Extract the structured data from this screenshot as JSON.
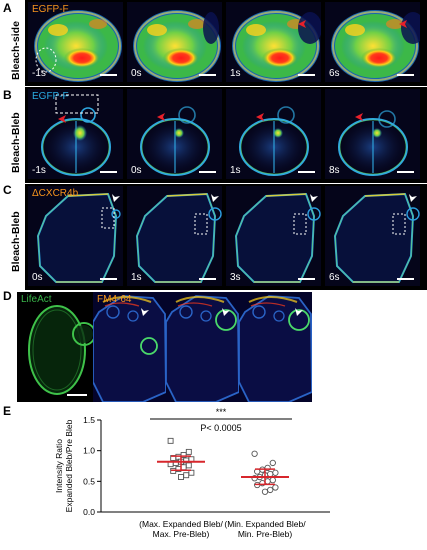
{
  "panel_letters": {
    "a": "A",
    "b": "B",
    "c": "C",
    "d": "D",
    "e": "E"
  },
  "row_labels": {
    "a": "Bleach-side",
    "b": "Bleach-Bleb",
    "c": "Bleach-Bleb"
  },
  "channel_labels": {
    "a": "EGFP-F",
    "b": "EGFP-F",
    "c": "ΔCXCR4b",
    "d_left": "LifeAct",
    "d_right": "FM4-64"
  },
  "colors": {
    "egfp_a": "#f7941d",
    "egfp_b": "#29abe2",
    "cxcr": "#f7941d",
    "lifeact": "#39b54a",
    "fm464": "#f7941d",
    "arrow_red": "#e8202a",
    "median_red": "#d7262c"
  },
  "timepoints": {
    "a": [
      "-1s",
      "0s",
      "1s",
      "6s"
    ],
    "b": [
      "-1s",
      "0s",
      "1s",
      "8s"
    ],
    "c": [
      "0s",
      "1s",
      "3s",
      "6s"
    ]
  },
  "chart_data": {
    "type": "scatter",
    "ylabel": "Intensity Ratio\nExpanded Bleb/Pre Bleb",
    "ylim": [
      0,
      1.5
    ],
    "yticks": [
      "0.0",
      "0.5",
      "1.0",
      "1.5"
    ],
    "categories": [
      "(Max. Expanded Bleb/\nMax. Pre-Bleb)",
      "(Min. Expanded Bleb/\nMin. Pre-Bleb)"
    ],
    "series": [
      {
        "marker": "square",
        "values": [
          1.16,
          0.98,
          0.93,
          0.9,
          0.88,
          0.86,
          0.84,
          0.82,
          0.8,
          0.78,
          0.76,
          0.73,
          0.7,
          0.67,
          0.64,
          0.6,
          0.57
        ],
        "median": 0.82,
        "iqr": [
          0.68,
          0.91
        ]
      },
      {
        "marker": "circle",
        "values": [
          0.95,
          0.8,
          0.72,
          0.69,
          0.66,
          0.64,
          0.62,
          0.6,
          0.57,
          0.55,
          0.52,
          0.5,
          0.47,
          0.44,
          0.4,
          0.36,
          0.33
        ],
        "median": 0.57,
        "iqr": [
          0.45,
          0.7
        ]
      }
    ],
    "annotation": {
      "stars": "***",
      "p_text": "P< 0.0005"
    }
  }
}
